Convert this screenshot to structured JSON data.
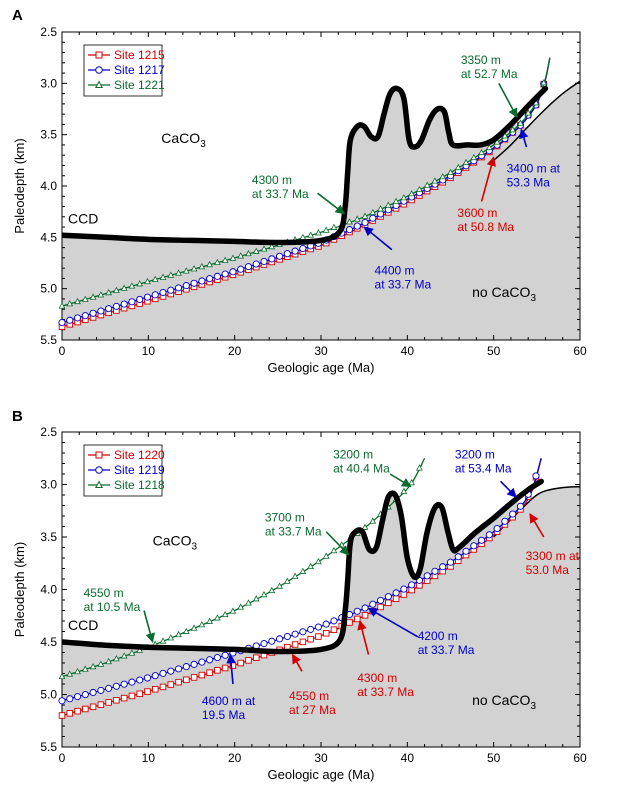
{
  "colors": {
    "site_red": "#d40000",
    "site_blue": "#0000c8",
    "site_green": "#0a6b2e",
    "fill_gray": "#d2d2d2",
    "ccd_black": "#000000"
  },
  "chart_data": [
    {
      "panel": "A",
      "type": "line",
      "xlabel": "Geologic age (Ma)",
      "ylabel": "Paleodepth (km)",
      "xlim": [
        0,
        60
      ],
      "ylim": [
        5.5,
        2.5
      ],
      "y_inverted": true,
      "x_ticks": [
        "0",
        "10",
        "20",
        "30",
        "40",
        "50",
        "60"
      ],
      "y_ticks": [
        "2.5",
        "3.0",
        "3.5",
        "4.0",
        "4.5",
        "5.0",
        "5.5"
      ],
      "region_labels": {
        "ccd": "CCD",
        "caco3": "CaCO",
        "caco3_sub": "3",
        "no_caco3": "no CaCO",
        "no_caco3_sub": "3"
      },
      "series": [
        {
          "name": "Site 1215",
          "color": "site_red",
          "marker": "square",
          "x": [
            0,
            10,
            20,
            30,
            35,
            40,
            45,
            50,
            53,
            55,
            56,
            56.5
          ],
          "y": [
            5.37,
            5.12,
            4.86,
            4.58,
            4.38,
            4.16,
            3.92,
            3.64,
            3.42,
            3.2,
            2.96,
            2.75
          ]
        },
        {
          "name": "Site 1217",
          "color": "site_blue",
          "marker": "circle",
          "x": [
            0,
            10,
            20,
            30,
            35,
            40,
            45,
            50,
            53,
            55,
            56,
            56.5
          ],
          "y": [
            5.33,
            5.08,
            4.83,
            4.55,
            4.36,
            4.13,
            3.9,
            3.63,
            3.42,
            3.2,
            2.96,
            2.75
          ]
        },
        {
          "name": "Site 1221",
          "color": "site_green",
          "marker": "triangle",
          "x": [
            0,
            10,
            20,
            30,
            35,
            40,
            45,
            50,
            53,
            55,
            56,
            56.5
          ],
          "y": [
            5.17,
            4.93,
            4.7,
            4.45,
            4.3,
            4.1,
            3.87,
            3.6,
            3.4,
            3.18,
            2.95,
            2.75
          ]
        }
      ],
      "ccd": {
        "x": [
          0,
          5,
          10,
          15,
          20,
          25,
          30,
          32.2,
          32.8,
          33.1,
          33.4,
          34.2,
          35,
          35.8,
          36.6,
          37.3,
          38,
          38.8,
          39.6,
          40.2,
          40.8,
          41.6,
          42.6,
          43.5,
          44.3,
          44.8,
          45.3,
          47,
          48.5,
          50,
          52,
          54,
          56
        ],
        "y": [
          4.48,
          4.5,
          4.52,
          4.53,
          4.54,
          4.55,
          4.53,
          4.44,
          4.2,
          3.85,
          3.55,
          3.42,
          3.42,
          3.52,
          3.52,
          3.3,
          3.1,
          3.05,
          3.15,
          3.55,
          3.62,
          3.56,
          3.35,
          3.25,
          3.28,
          3.48,
          3.6,
          3.6,
          3.6,
          3.55,
          3.4,
          3.22,
          3.05
        ]
      },
      "floor": {
        "x": [
          50,
          52,
          54,
          56,
          58,
          60
        ],
        "y": [
          3.75,
          3.6,
          3.42,
          3.25,
          3.1,
          2.98
        ]
      },
      "annotations": [
        {
          "lines": [
            "3350 m",
            "at 52.7 Ma"
          ],
          "color": "site_green",
          "text_x": 46.2,
          "text_y": 2.81,
          "arrow": [
            [
              50.6,
              3.0
            ],
            [
              52.7,
              3.33
            ]
          ]
        },
        {
          "lines": [
            "4300 m",
            "at 33.7 Ma"
          ],
          "color": "site_green",
          "text_x": 22.0,
          "text_y": 3.98,
          "arrow": [
            [
              29.6,
              4.07
            ],
            [
              32.7,
              4.27
            ]
          ]
        },
        {
          "lines": [
            "4400 m",
            "at 33.7 Ma"
          ],
          "color": "site_blue",
          "text_x": 36.2,
          "text_y": 4.86,
          "arrow": [
            [
              38.2,
              4.62
            ],
            [
              35.0,
              4.4
            ]
          ]
        },
        {
          "lines": [
            "3600 m",
            "at 50.8 Ma"
          ],
          "color": "site_red",
          "text_x": 45.8,
          "text_y": 4.3,
          "arrow": [
            [
              48.6,
              4.15
            ],
            [
              50.0,
              3.72
            ]
          ]
        },
        {
          "lines": [
            "3400 m at",
            "53.3 Ma"
          ],
          "color": "site_blue",
          "text_x": 51.5,
          "text_y": 3.87,
          "arrow": [
            [
              53.8,
              3.62
            ],
            [
              53.2,
              3.45
            ]
          ]
        }
      ]
    },
    {
      "panel": "B",
      "type": "line",
      "xlabel": "Geologic age (Ma)",
      "ylabel": "Paleodepth (km)",
      "xlim": [
        0,
        60
      ],
      "ylim": [
        5.5,
        2.5
      ],
      "y_inverted": true,
      "x_ticks": [
        "0",
        "10",
        "20",
        "30",
        "40",
        "50",
        "60"
      ],
      "y_ticks": [
        "2.5",
        "3.0",
        "3.5",
        "4.0",
        "4.5",
        "5.0",
        "5.5"
      ],
      "region_labels": {
        "ccd": "CCD",
        "caco3": "CaCO",
        "caco3_sub": "3",
        "no_caco3": "no CaCO",
        "no_caco3_sub": "3"
      },
      "series": [
        {
          "name": "Site 1220",
          "color": "site_red",
          "marker": "square",
          "x": [
            0,
            10,
            20,
            30,
            35,
            40,
            45,
            50,
            53,
            54.5,
            55.5
          ],
          "y": [
            5.2,
            4.97,
            4.72,
            4.44,
            4.25,
            4.03,
            3.78,
            3.48,
            3.25,
            3.05,
            2.75
          ]
        },
        {
          "name": "Site 1219",
          "color": "site_blue",
          "marker": "circle",
          "x": [
            0,
            10,
            20,
            30,
            35,
            40,
            45,
            50,
            53,
            54.5,
            55.5
          ],
          "y": [
            5.06,
            4.84,
            4.6,
            4.35,
            4.18,
            3.98,
            3.74,
            3.45,
            3.22,
            3.03,
            2.75
          ]
        },
        {
          "name": "Site 1218",
          "color": "site_green",
          "marker": "triangle",
          "x": [
            0,
            5,
            10,
            15,
            20,
            25,
            30,
            33.7,
            36,
            38,
            40.4,
            42
          ],
          "y": [
            4.83,
            4.7,
            4.55,
            4.38,
            4.2,
            3.98,
            3.72,
            3.5,
            3.35,
            3.2,
            3.0,
            2.75
          ]
        }
      ],
      "ccd": {
        "x": [
          0,
          5,
          10,
          15,
          20,
          25,
          30,
          32.2,
          32.8,
          33.1,
          33.4,
          34,
          34.8,
          35.6,
          36.4,
          37.1,
          37.8,
          38.6,
          39.3,
          40,
          40.8,
          41.5,
          42.3,
          43.2,
          44,
          44.7,
          45.3,
          46,
          48,
          50,
          52,
          54,
          55.5
        ],
        "y": [
          4.5,
          4.53,
          4.55,
          4.56,
          4.57,
          4.59,
          4.57,
          4.48,
          4.2,
          3.9,
          3.55,
          3.45,
          3.45,
          3.62,
          3.6,
          3.35,
          3.12,
          3.1,
          3.3,
          3.7,
          3.88,
          3.8,
          3.45,
          3.22,
          3.22,
          3.45,
          3.62,
          3.6,
          3.45,
          3.32,
          3.18,
          3.05,
          2.97
        ]
      },
      "floor": {
        "x": [
          50,
          52,
          54,
          55,
          56,
          58,
          60
        ],
        "y": [
          3.5,
          3.33,
          3.17,
          3.1,
          3.06,
          3.03,
          3.02
        ]
      },
      "annotations": [
        {
          "lines": [
            "3200 m",
            "at 40.4 Ma"
          ],
          "color": "site_green",
          "text_x": 31.4,
          "text_y": 2.75,
          "arrow": [
            [
              38.0,
              2.9
            ],
            [
              40.4,
              3.02
            ]
          ]
        },
        {
          "lines": [
            "3700 m",
            "at 33.7 Ma"
          ],
          "color": "site_green",
          "text_x": 23.5,
          "text_y": 3.35,
          "arrow": [
            [
              30.6,
              3.45
            ],
            [
              33.2,
              3.67
            ]
          ]
        },
        {
          "lines": [
            "4550 m",
            "at 10.5 Ma"
          ],
          "color": "site_green",
          "text_x": 2.5,
          "text_y": 4.07,
          "arrow": [
            [
              9.5,
              4.2
            ],
            [
              10.5,
              4.5
            ]
          ]
        },
        {
          "lines": [
            "4600 m at",
            "19.5 Ma"
          ],
          "color": "site_blue",
          "text_x": 16.2,
          "text_y": 5.1,
          "arrow": [
            [
              19.8,
              4.9
            ],
            [
              19.5,
              4.62
            ]
          ]
        },
        {
          "lines": [
            "4550 m",
            "at 27 Ma"
          ],
          "color": "site_red",
          "text_x": 26.3,
          "text_y": 5.05,
          "arrow": [
            [
              27.8,
              4.78
            ],
            [
              26.7,
              4.62
            ]
          ]
        },
        {
          "lines": [
            "4300 m",
            "at 33.7 Ma"
          ],
          "color": "site_red",
          "text_x": 34.2,
          "text_y": 4.88,
          "arrow": [
            [
              35.5,
              4.62
            ],
            [
              34.5,
              4.3
            ]
          ]
        },
        {
          "lines": [
            "4200 m",
            "at 33.7 Ma"
          ],
          "color": "site_blue",
          "text_x": 41.2,
          "text_y": 4.48,
          "arrow": [
            [
              41.2,
              4.45
            ],
            [
              35.5,
              4.18
            ]
          ]
        },
        {
          "lines": [
            "3200 m",
            "at 53.4 Ma"
          ],
          "color": "site_blue",
          "text_x": 45.5,
          "text_y": 2.75,
          "arrow": [
            [
              50.8,
              2.97
            ],
            [
              52.6,
              3.12
            ]
          ]
        },
        {
          "lines": [
            "3300 m at",
            "53.0 Ma"
          ],
          "color": "site_red",
          "text_x": 53.7,
          "text_y": 3.72,
          "arrow": [
            [
              55.8,
              3.5
            ],
            [
              54.2,
              3.28
            ]
          ]
        }
      ]
    }
  ]
}
